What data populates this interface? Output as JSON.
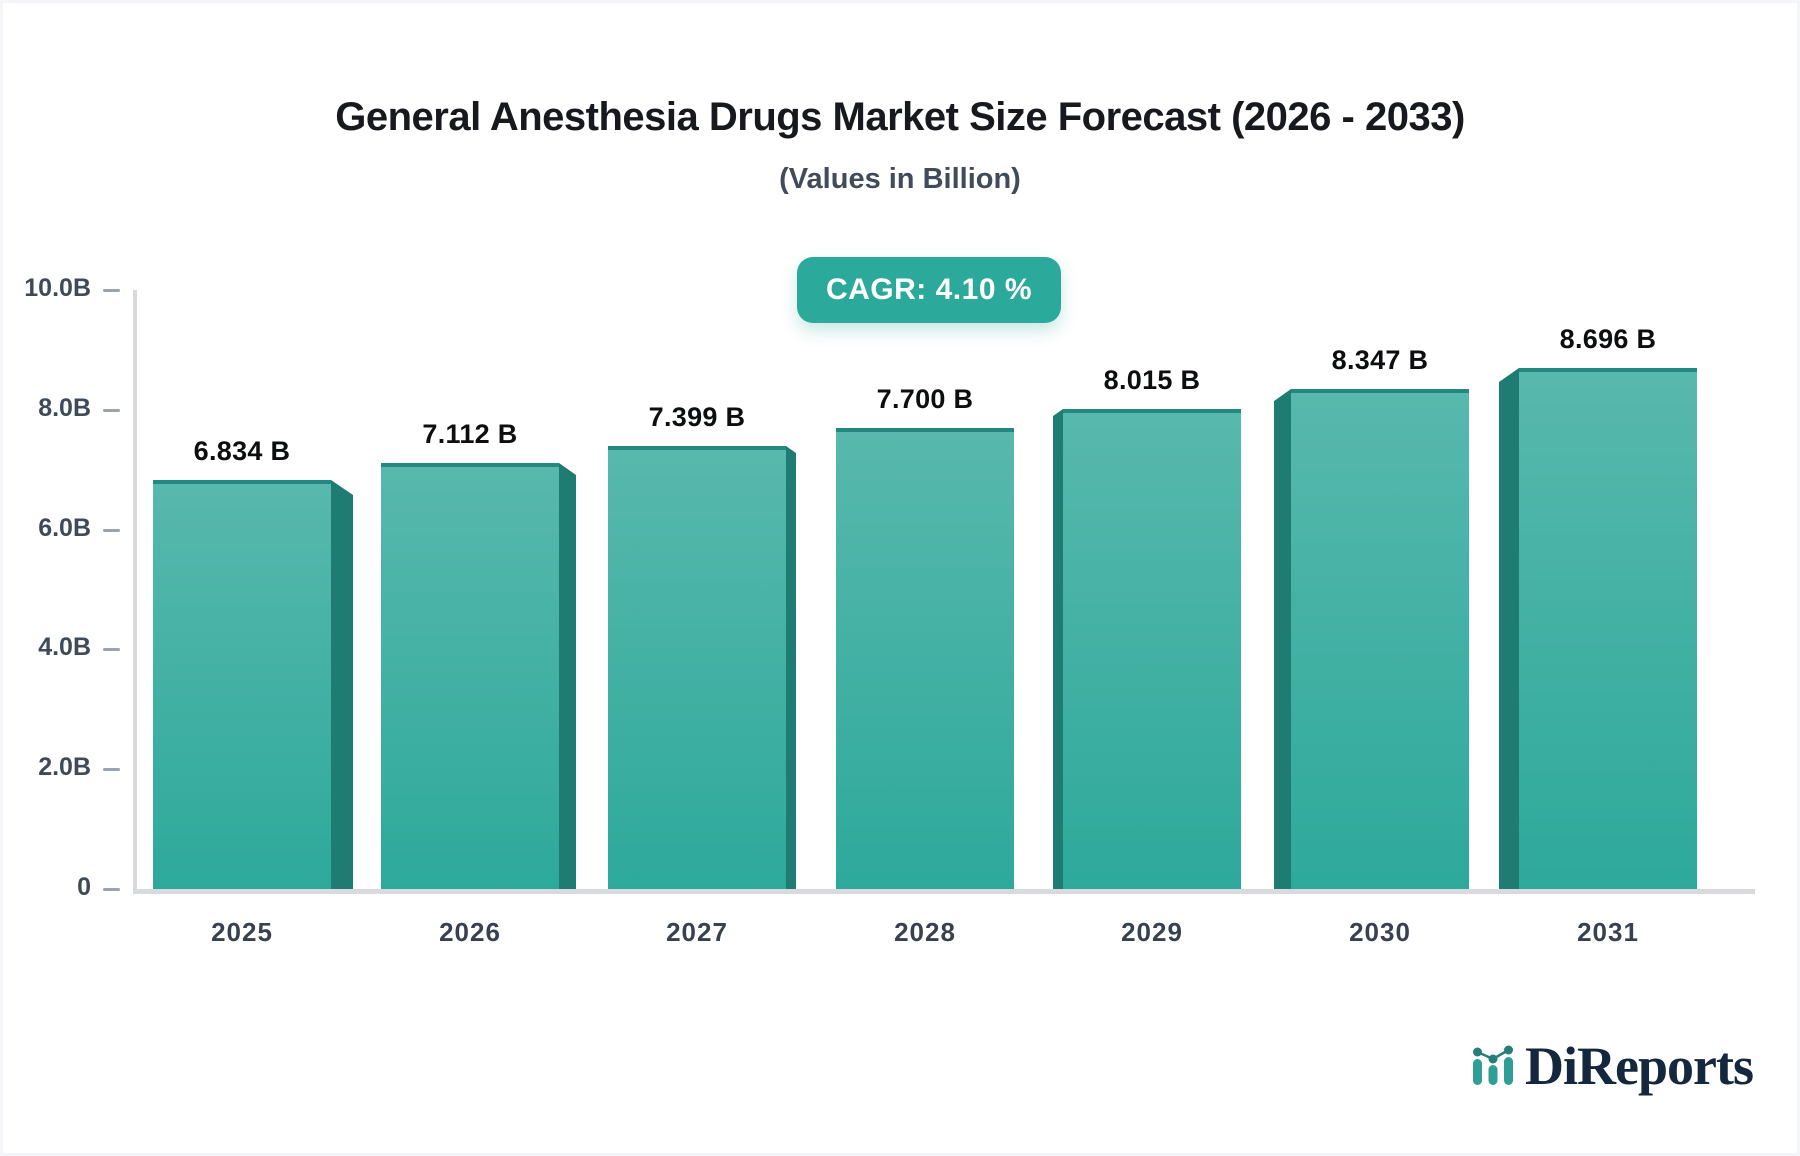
{
  "header": {
    "title": "General Anesthesia Drugs Market Size Forecast (2026 - 2033)",
    "subtitle": "(Values in Billion)",
    "cagr_label": "CAGR: 4.10 %"
  },
  "chart_data": {
    "type": "bar",
    "categories": [
      "2025",
      "2026",
      "2027",
      "2028",
      "2029",
      "2030",
      "2031"
    ],
    "values": [
      6.834,
      7.112,
      7.399,
      7.7,
      8.015,
      8.347,
      8.696
    ],
    "value_labels": [
      "6.834 B",
      "7.112 B",
      "7.399 B",
      "7.700 B",
      "8.015 B",
      "8.347 B",
      "8.696 B"
    ],
    "title": "General Anesthesia Drugs Market Size Forecast (2026 - 2033)",
    "subtitle": "(Values in Billion)",
    "xlabel": "",
    "ylabel": "",
    "ylim": [
      0,
      10
    ],
    "y_ticks": [
      "10.0B",
      "8.0B",
      "6.0B",
      "4.0B",
      "2.0B",
      "0"
    ],
    "y_tick_values": [
      10,
      8,
      6,
      4,
      2,
      0
    ],
    "grid": false,
    "legend": false,
    "bar_style": "3d-beveled",
    "colors": {
      "bar_face_top": "#58b8ad",
      "bar_face_bottom": "#2da99b",
      "bar_top_edge": "#23887e",
      "bar_side": "#1f7c72",
      "axis_line": "#d8dade",
      "tick_mark": "#9aa3af",
      "tick_text": "#3f4a59",
      "value_text": "#0d0e10"
    }
  },
  "badge": {
    "text": "CAGR: 4.10 %",
    "bg": "#2ba99b",
    "fg": "#ffffff"
  },
  "footer": {
    "logo_text": "DiReports",
    "logo_text_color": "#15273d",
    "logo_icon": "mini-bar-line-chart-icon",
    "logo_icon_color": "#2f9f95"
  }
}
